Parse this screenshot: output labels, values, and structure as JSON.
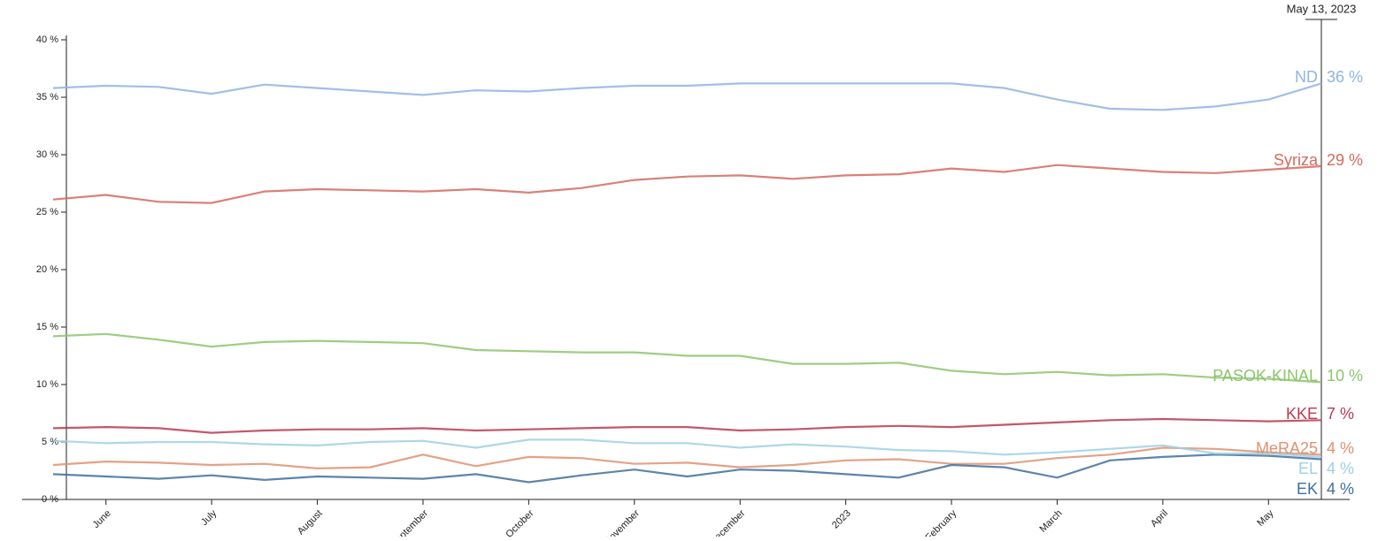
{
  "chart_data": {
    "type": "line",
    "categories": [
      null,
      "June",
      null,
      "July",
      null,
      "August",
      null,
      "September",
      null,
      "October",
      null,
      "November",
      null,
      "December",
      null,
      "2023",
      null,
      "February",
      null,
      "March",
      null,
      "April",
      null,
      "May",
      "May 13, 2023"
    ],
    "ylim": [
      0,
      40
    ],
    "yticks": [
      {
        "value": 0,
        "label": "0 %"
      },
      {
        "value": 5,
        "label": "5 %"
      },
      {
        "value": 10,
        "label": "10 %"
      },
      {
        "value": 15,
        "label": "15 %"
      },
      {
        "value": 20,
        "label": "20 %"
      },
      {
        "value": 25,
        "label": "25 %"
      },
      {
        "value": 30,
        "label": "30 %"
      },
      {
        "value": 35,
        "label": "35 %"
      },
      {
        "value": 40,
        "label": "40 %"
      }
    ],
    "series": [
      {
        "name": "ND",
        "color": "#8fb4e3",
        "label": "36 %",
        "values": [
          35.8,
          36.0,
          35.9,
          35.3,
          36.1,
          35.8,
          35.5,
          35.2,
          35.6,
          35.5,
          35.8,
          36.0,
          36.0,
          36.2,
          36.2,
          36.2,
          36.2,
          36.2,
          35.8,
          34.8,
          34.0,
          33.9,
          34.2,
          34.8,
          36.2
        ]
      },
      {
        "name": "Syriza",
        "color": "#d46a5f",
        "label": "29 %",
        "values": [
          26.1,
          26.5,
          25.9,
          25.8,
          26.8,
          27.0,
          26.9,
          26.8,
          27.0,
          26.7,
          27.1,
          27.8,
          28.1,
          28.2,
          27.9,
          28.2,
          28.3,
          28.8,
          28.5,
          29.1,
          28.8,
          28.5,
          28.4,
          28.7,
          29.0
        ]
      },
      {
        "name": "PASOK-KINAL",
        "color": "#8cc46b",
        "label": "10 %",
        "values": [
          14.2,
          14.4,
          13.9,
          13.3,
          13.7,
          13.8,
          13.7,
          13.6,
          13.0,
          12.9,
          12.8,
          12.8,
          12.5,
          12.5,
          11.8,
          11.8,
          11.9,
          11.2,
          10.9,
          11.1,
          10.8,
          10.9,
          10.6,
          10.5,
          10.2
        ]
      },
      {
        "name": "KKE",
        "color": "#b83a50",
        "label": "7 %",
        "values": [
          6.2,
          6.3,
          6.2,
          5.8,
          6.0,
          6.1,
          6.1,
          6.2,
          6.0,
          6.1,
          6.2,
          6.3,
          6.3,
          6.0,
          6.1,
          6.3,
          6.4,
          6.3,
          6.5,
          6.7,
          6.9,
          7.0,
          6.9,
          6.8,
          6.9
        ]
      },
      {
        "name": "MeRA25",
        "color": "#e09070",
        "label": "4 %",
        "values": [
          3.0,
          3.3,
          3.2,
          3.0,
          3.1,
          2.7,
          2.8,
          3.9,
          2.9,
          3.7,
          3.6,
          3.1,
          3.2,
          2.8,
          3.0,
          3.4,
          3.5,
          3.1,
          3.1,
          3.6,
          3.9,
          4.5,
          4.4,
          4.1,
          3.9
        ]
      },
      {
        "name": "EK",
        "color": "#3f6f9e",
        "label": "4 %",
        "values": [
          2.2,
          2.0,
          1.8,
          2.1,
          1.7,
          2.0,
          1.9,
          1.8,
          2.2,
          1.5,
          2.1,
          2.6,
          2.0,
          2.6,
          2.5,
          2.2,
          1.9,
          3.0,
          2.8,
          1.9,
          3.4,
          3.7,
          3.9,
          3.8,
          3.5
        ]
      },
      {
        "name": "EL",
        "color": "#9dd0e6",
        "label": "4 %",
        "values": [
          5.1,
          4.9,
          5.0,
          5.0,
          4.8,
          4.7,
          5.0,
          5.1,
          4.5,
          5.2,
          5.2,
          4.9,
          4.9,
          4.5,
          4.8,
          4.6,
          4.3,
          4.2,
          3.9,
          4.1,
          4.4,
          4.7,
          4.0,
          4.0,
          3.7
        ]
      }
    ]
  }
}
